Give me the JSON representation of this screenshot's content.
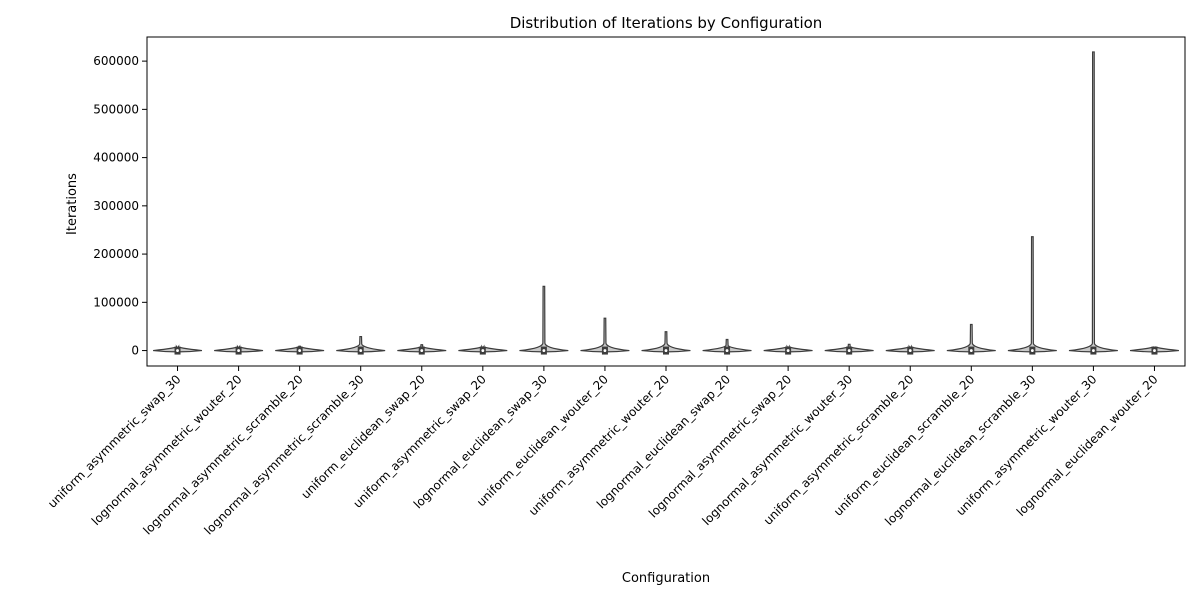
{
  "chart_data": {
    "type": "violin",
    "title": "Distribution of Iterations by Configuration",
    "xlabel": "Configuration",
    "ylabel": "Iterations",
    "ylim": [
      -32000,
      650000
    ],
    "yticks": [
      0,
      100000,
      200000,
      300000,
      400000,
      500000,
      600000
    ],
    "grid": false,
    "categories": [
      "uniform_asymmetric_swap_30",
      "lognormal_asymmetric_wouter_20",
      "lognormal_asymmetric_scramble_20",
      "lognormal_asymmetric_scramble_30",
      "uniform_euclidean_swap_20",
      "uniform_asymmetric_swap_20",
      "lognormal_euclidean_swap_30",
      "uniform_euclidean_wouter_20",
      "uniform_asymmetric_wouter_20",
      "lognormal_euclidean_swap_20",
      "lognormal_asymmetric_swap_20",
      "lognormal_asymmetric_wouter_30",
      "uniform_asymmetric_scramble_20",
      "uniform_euclidean_scramble_20",
      "lognormal_euclidean_scramble_30",
      "uniform_asymmetric_wouter_30",
      "lognormal_euclidean_wouter_20"
    ],
    "max_values": [
      4000,
      1500,
      9000,
      29000,
      12000,
      1000,
      133000,
      67000,
      39000,
      23000,
      1000,
      13000,
      2000,
      54000,
      236000,
      619000,
      6000
    ],
    "colors": {
      "violin_fill": "#c9c9c9",
      "violin_edge": "#3d3d3d",
      "box": "#3d3d3d",
      "median": "#ffffff"
    }
  }
}
